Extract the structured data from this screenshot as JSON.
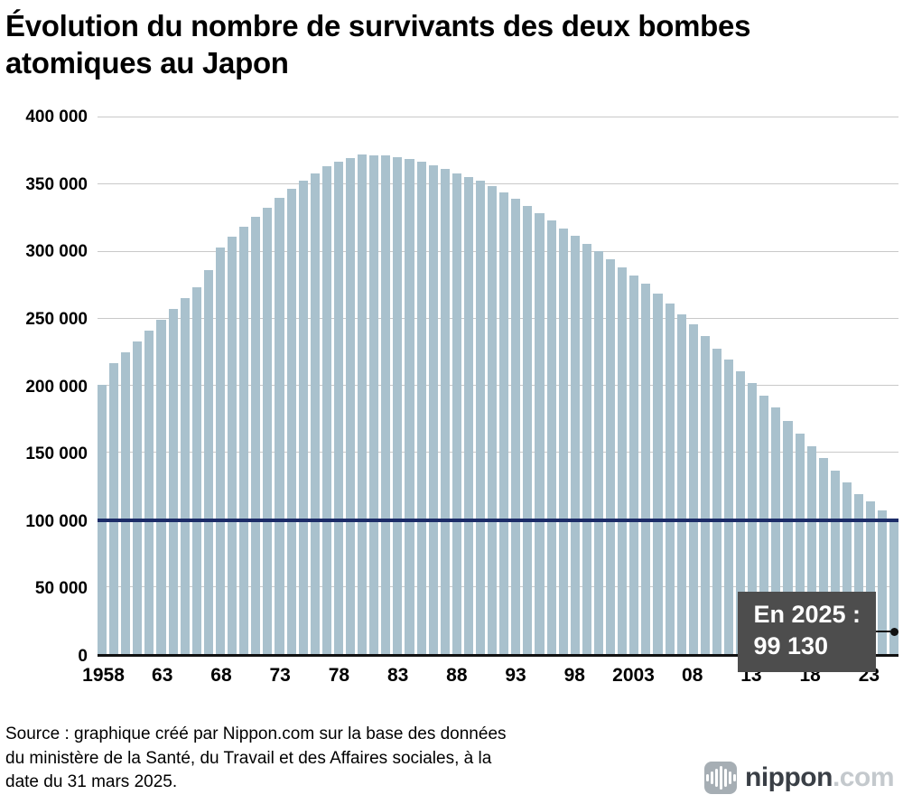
{
  "annotation": {
    "line1": "En 2025 :",
    "line2": "99 130"
  },
  "source": {
    "lines": [
      "Source : graphique créé par Nippon.com sur la base des données",
      "du ministère de la Santé, du Travail et des Affaires sociales, à la",
      "date du 31 mars 2025."
    ]
  },
  "logo": {
    "name": "nippon",
    "tld": ".com"
  },
  "chart_data": {
    "type": "bar",
    "title": "Évolution du nombre de survivants des deux bombes atomiques au Japon",
    "xlabel": "",
    "ylabel": "",
    "ylim": [
      0,
      400000
    ],
    "grid": true,
    "bar_color": "#a9c1cd",
    "years": [
      1958,
      1959,
      1960,
      1961,
      1962,
      1963,
      1964,
      1965,
      1966,
      1967,
      1968,
      1969,
      1970,
      1971,
      1972,
      1973,
      1974,
      1975,
      1976,
      1977,
      1978,
      1979,
      1980,
      1981,
      1982,
      1983,
      1984,
      1985,
      1986,
      1987,
      1988,
      1989,
      1990,
      1991,
      1992,
      1993,
      1994,
      1995,
      1996,
      1997,
      1998,
      1999,
      2000,
      2001,
      2002,
      2003,
      2004,
      2005,
      2006,
      2007,
      2008,
      2009,
      2010,
      2011,
      2012,
      2013,
      2014,
      2015,
      2016,
      2017,
      2018,
      2019,
      2020,
      2021,
      2022,
      2023,
      2024,
      2025
    ],
    "values": [
      200984,
      217000,
      225000,
      233000,
      241000,
      249500,
      257500,
      265500,
      273500,
      286000,
      303000,
      311000,
      318500,
      326000,
      333000,
      340000,
      347000,
      353000,
      358500,
      363500,
      367000,
      370000,
      372264,
      372000,
      371500,
      370500,
      369000,
      367000,
      364500,
      361500,
      358500,
      355500,
      352550,
      348700,
      344400,
      339500,
      334300,
      328629,
      323000,
      317000,
      311500,
      306000,
      300400,
      294500,
      288500,
      282500,
      276000,
      269000,
      261500,
      253500,
      245500,
      237000,
      227565,
      219410,
      210830,
      201779,
      192719,
      183519,
      174080,
      164621,
      154859,
      145844,
      136682,
      127755,
      118935,
      113649,
      106825,
      99130
    ],
    "yticks": [
      {
        "value": 0,
        "label": "0"
      },
      {
        "value": 50000,
        "label": "50 000"
      },
      {
        "value": 100000,
        "label": "100 000"
      },
      {
        "value": 150000,
        "label": "150 000"
      },
      {
        "value": 200000,
        "label": "200 000"
      },
      {
        "value": 250000,
        "label": "250 000"
      },
      {
        "value": 300000,
        "label": "300 000"
      },
      {
        "value": 350000,
        "label": "350 000"
      },
      {
        "value": 400000,
        "label": "400 000"
      }
    ],
    "xticks": [
      {
        "year": 1958,
        "label": "1958"
      },
      {
        "year": 1963,
        "label": "63"
      },
      {
        "year": 1968,
        "label": "68"
      },
      {
        "year": 1973,
        "label": "73"
      },
      {
        "year": 1978,
        "label": "78"
      },
      {
        "year": 1983,
        "label": "83"
      },
      {
        "year": 1988,
        "label": "88"
      },
      {
        "year": 1993,
        "label": "93"
      },
      {
        "year": 1998,
        "label": "98"
      },
      {
        "year": 2003,
        "label": "2003"
      },
      {
        "year": 2008,
        "label": "08"
      },
      {
        "year": 2013,
        "label": "13"
      },
      {
        "year": 2018,
        "label": "18"
      },
      {
        "year": 2023,
        "label": "23"
      }
    ],
    "reference_line": {
      "value": 100000,
      "color": "#1c2c68"
    },
    "annotation": {
      "text": "En 2025 : 99 130",
      "year": 2025,
      "value": 99130
    }
  }
}
